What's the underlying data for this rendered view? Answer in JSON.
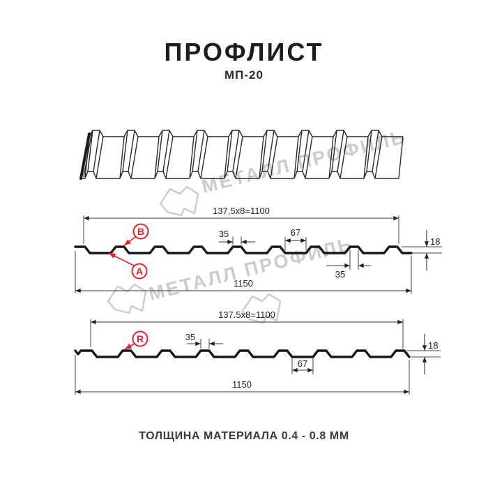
{
  "header": {
    "title": "ПРОФЛИСТ",
    "subtitle": "МП-20"
  },
  "watermark": {
    "brand": "МЕТАЛЛ ПРОФИЛЬ"
  },
  "section_a": {
    "dim_module": "137,5x8=1100",
    "dim_overall": "1150",
    "dim_crest_top": "35",
    "dim_valley": "67",
    "dim_height": "18",
    "dim_crest_bottom": "35",
    "label_a": "A",
    "label_b": "B"
  },
  "section_r": {
    "dim_module": "137.5x8=1100",
    "dim_overall": "1150",
    "dim_crest": "35",
    "dim_valley": "67",
    "dim_height": "18",
    "label_r": "R"
  },
  "footer": {
    "thickness_note": "ТОЛЩИНА МАТЕРИАЛА 0.4 - 0.8 ММ"
  }
}
